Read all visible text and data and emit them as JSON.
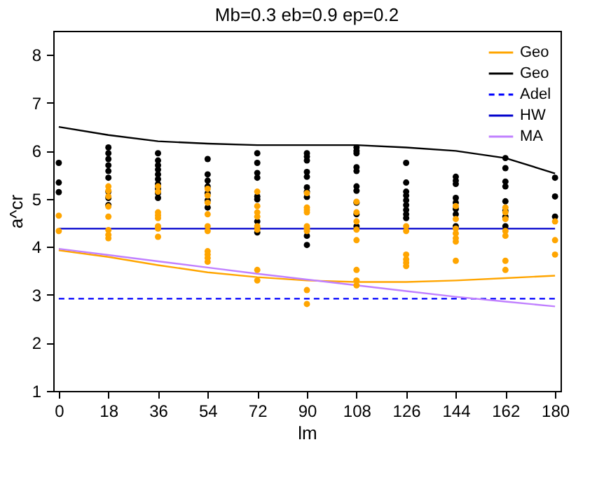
{
  "chart_data": {
    "type": "line",
    "title": "Mb=0.3  eb=0.9  ep=0.2",
    "xlabel": "lm",
    "ylabel": "a^cr",
    "x": [
      0,
      18,
      36,
      54,
      72,
      90,
      108,
      126,
      144,
      162,
      180
    ],
    "xlim": [
      -2,
      182
    ],
    "ylim": [
      1,
      8.5
    ],
    "xticks": [
      0,
      18,
      36,
      54,
      72,
      90,
      108,
      126,
      144,
      162,
      180
    ],
    "yticks": [
      1,
      2,
      3,
      4,
      5,
      6,
      7,
      8
    ],
    "grid": false,
    "legend": "top right",
    "series": [
      {
        "name": "Geo",
        "color": "#ffa500",
        "values": [
          3.93,
          3.79,
          3.62,
          3.47,
          3.37,
          3.3,
          3.27,
          3.27,
          3.3,
          3.35,
          3.4
        ]
      },
      {
        "name": "Geo",
        "color": "#000000",
        "values": [
          6.5,
          6.33,
          6.2,
          6.15,
          6.12,
          6.12,
          6.12,
          6.07,
          6.0,
          5.85,
          5.53
        ]
      },
      {
        "name": "Adel",
        "line_style": "dashed",
        "color": "#0000ff",
        "values": [
          2.92,
          2.92,
          2.92,
          2.92,
          2.92,
          2.92,
          2.92,
          2.92,
          2.92,
          2.92,
          2.92
        ]
      },
      {
        "name": "HW",
        "color": "#0000cc",
        "values": [
          4.38,
          4.38,
          4.38,
          4.38,
          4.38,
          4.38,
          4.38,
          4.38,
          4.38,
          4.38,
          4.38
        ]
      },
      {
        "name": "MA",
        "color": "#c080ff",
        "values": [
          3.96,
          3.83,
          3.7,
          3.57,
          3.44,
          3.32,
          3.2,
          3.08,
          2.96,
          2.86,
          2.76
        ]
      },
      {
        "type": "scatter",
        "marker": "circle",
        "color": "#000000",
        "x": [
          0,
          0,
          0,
          18,
          18,
          18,
          18,
          18,
          18,
          18,
          18,
          18,
          36,
          36,
          36,
          36,
          36,
          36,
          36,
          36,
          36,
          36,
          54,
          54,
          54,
          54,
          54,
          54,
          54,
          72,
          72,
          72,
          72,
          72,
          72,
          72,
          72,
          72,
          90,
          90,
          90,
          90,
          90,
          90,
          90,
          90,
          90,
          90,
          108,
          108,
          108,
          108,
          108,
          108,
          108,
          108,
          108,
          108,
          126,
          126,
          126,
          126,
          126,
          126,
          126,
          126,
          126,
          144,
          144,
          144,
          144,
          144,
          144,
          144,
          144,
          162,
          162,
          162,
          162,
          162,
          162,
          162,
          162,
          180,
          180,
          180
        ],
        "values": [
          5.75,
          5.34,
          5.14,
          6.07,
          5.95,
          5.83,
          5.7,
          5.58,
          5.44,
          5.15,
          5.02,
          4.87,
          5.95,
          5.8,
          5.7,
          5.61,
          5.51,
          5.41,
          5.31,
          5.21,
          5.12,
          5.02,
          5.83,
          5.51,
          5.38,
          5.26,
          5.12,
          4.97,
          4.82,
          5.95,
          5.75,
          5.54,
          5.44,
          5.05,
          4.99,
          4.53,
          4.38,
          4.3,
          5.95,
          5.88,
          5.8,
          5.56,
          5.46,
          5.24,
          5.15,
          5.04,
          4.23,
          4.04,
          6.07,
          6.0,
          5.95,
          5.66,
          5.58,
          5.26,
          5.17,
          4.92,
          4.68,
          4.43,
          5.75,
          5.34,
          5.15,
          5.07,
          4.97,
          4.87,
          4.77,
          4.68,
          4.6,
          5.46,
          5.38,
          5.31,
          5.02,
          4.92,
          4.79,
          4.68,
          4.43,
          5.85,
          5.64,
          5.36,
          5.26,
          4.95,
          4.75,
          4.63,
          4.43,
          5.44,
          5.05,
          4.63
        ]
      },
      {
        "type": "scatter",
        "marker": "circle",
        "color": "#ffa500",
        "x": [
          0,
          0,
          18,
          18,
          18,
          18,
          18,
          18,
          18,
          18,
          36,
          36,
          36,
          36,
          36,
          36,
          36,
          36,
          54,
          54,
          54,
          54,
          54,
          54,
          54,
          54,
          54,
          54,
          72,
          72,
          72,
          72,
          72,
          72,
          72,
          72,
          90,
          90,
          90,
          90,
          90,
          90,
          90,
          90,
          90,
          108,
          108,
          108,
          108,
          108,
          108,
          108,
          108,
          126,
          126,
          126,
          126,
          126,
          126,
          144,
          144,
          144,
          144,
          144,
          144,
          144,
          162,
          162,
          162,
          162,
          162,
          162,
          162,
          180,
          180,
          180
        ],
        "values": [
          4.65,
          4.33,
          5.26,
          5.17,
          5.05,
          4.84,
          4.63,
          4.35,
          4.25,
          4.18,
          5.26,
          5.15,
          4.72,
          4.66,
          4.6,
          4.43,
          4.38,
          4.21,
          5.21,
          5.07,
          4.92,
          4.68,
          4.43,
          4.33,
          3.91,
          3.84,
          3.77,
          3.69,
          5.15,
          4.85,
          4.72,
          4.63,
          4.43,
          4.36,
          3.52,
          3.3,
          5.12,
          4.82,
          4.77,
          4.72,
          4.43,
          4.38,
          4.33,
          3.1,
          2.81,
          4.94,
          4.72,
          4.53,
          4.36,
          4.14,
          3.52,
          3.3,
          3.2,
          4.43,
          4.33,
          3.84,
          3.74,
          3.67,
          3.6,
          4.85,
          4.58,
          4.38,
          4.28,
          4.18,
          4.11,
          3.71,
          4.82,
          4.72,
          4.58,
          4.33,
          4.23,
          3.71,
          3.52,
          4.53,
          4.14,
          3.84
        ]
      }
    ]
  }
}
